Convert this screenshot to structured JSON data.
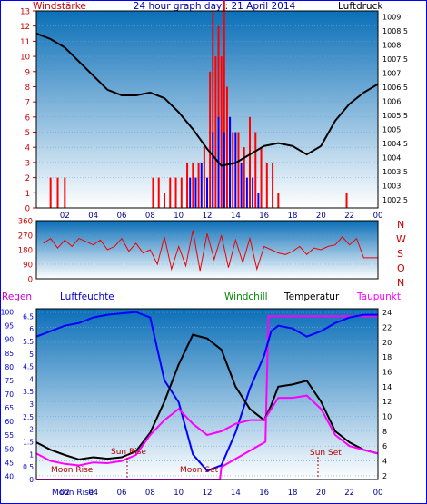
{
  "header": {
    "left": "Windstärke",
    "center": "24 hour graph day : 21 April 2014",
    "right": "Luftdruck"
  },
  "middle_labels": [
    "N",
    "W",
    "S",
    "O",
    "N"
  ],
  "bottom_header": {
    "regen": "Regen",
    "luftfeuchte": "Luftfeuchte",
    "windchill": "Windchill",
    "temperatur": "Temperatur",
    "taupunkt": "Taupunkt"
  },
  "annotations": {
    "sun_rise": "Sun Rise",
    "sun_set": "Sun Set",
    "moon_rise": "Moon Rise",
    "moon_set": "Moon Set",
    "moon_rise_bottom": "Moon Rise"
  },
  "colors": {
    "panel_top": "#0b6fb8",
    "panel_bottom": "#ffffff",
    "wind_red": "#ff0000",
    "wind_blue": "#0000ff",
    "pressure": "#000000",
    "humidity": "#0000ff",
    "temperature": "#000000",
    "dewpoint": "#ff00ff",
    "windchill": "#008800",
    "rain_axis": "#0000ff",
    "left_axis": "#cc0000",
    "annotation": "#aa0000"
  },
  "chart_data": [
    {
      "type": "line",
      "title": "24 hour graph day : 21 April 2014",
      "x_ticks": [
        "02",
        "04",
        "06",
        "08",
        "10",
        "12",
        "14",
        "16",
        "18",
        "20",
        "22",
        "00"
      ],
      "y_left_label": "Windstärke",
      "y_left_ticks": [
        0,
        1,
        2,
        3,
        4,
        5,
        6,
        7,
        8,
        9,
        10,
        11,
        12,
        13
      ],
      "y_left_range": [
        0,
        13
      ],
      "y_right_label": "Luftdruck",
      "y_right_ticks": [
        1002.5,
        1003,
        1003.5,
        1004,
        1004.5,
        1005,
        1005.5,
        1006,
        1006.5,
        1007,
        1007.5,
        1008,
        1008.5,
        1009
      ],
      "y_right_range": [
        1002.2,
        1009.2
      ],
      "x_range_hours": [
        0,
        24
      ],
      "pressure": {
        "x": [
          0,
          1,
          2,
          3,
          4,
          5,
          6,
          7,
          8,
          9,
          10,
          11,
          12,
          13,
          14,
          15,
          16,
          17,
          18,
          19,
          20,
          21,
          22,
          23,
          24
        ],
        "y": [
          1008.4,
          1008.2,
          1007.9,
          1007.4,
          1006.9,
          1006.4,
          1006.2,
          1006.2,
          1006.3,
          1006.1,
          1005.6,
          1005.0,
          1004.3,
          1003.7,
          1003.8,
          1004.1,
          1004.4,
          1004.5,
          1004.4,
          1004.1,
          1004.4,
          1005.3,
          1005.9,
          1006.3,
          1006.6
        ]
      },
      "wind_red_bars": {
        "x": [
          1.0,
          1.5,
          2.0,
          8.2,
          8.6,
          9.0,
          9.4,
          9.8,
          10.2,
          10.6,
          11.0,
          11.4,
          11.8,
          12.2,
          12.4,
          12.6,
          12.8,
          13.0,
          13.2,
          13.4,
          13.6,
          13.8,
          14.2,
          14.6,
          15.0,
          15.4,
          15.8,
          16.2,
          16.6,
          17.0,
          21.8
        ],
        "y": [
          2,
          2,
          2,
          2,
          2,
          1,
          2,
          2,
          2,
          3,
          3,
          3,
          4,
          9,
          13,
          10,
          12,
          10,
          14,
          8,
          6,
          5,
          5,
          4,
          6,
          5,
          4,
          3,
          3,
          1,
          1
        ]
      },
      "wind_blue_bars": {
        "x": [
          10.8,
          11.2,
          11.6,
          12.0,
          12.4,
          12.8,
          13.2,
          13.6,
          14.0,
          14.4,
          14.8,
          15.2,
          15.6
        ],
        "y": [
          2,
          2,
          3,
          2,
          5,
          6,
          5,
          6,
          5,
          3,
          2,
          2,
          1
        ]
      }
    },
    {
      "type": "line",
      "y_ticks": [
        0,
        90,
        180,
        270,
        360
      ],
      "y_range": [
        0,
        360
      ],
      "x_range_hours": [
        0,
        24
      ],
      "wind_direction": {
        "x": [
          0.5,
          1,
          1.5,
          2,
          2.5,
          3,
          3.5,
          4,
          4.5,
          5,
          5.5,
          6,
          6.5,
          7,
          7.5,
          8,
          8.5,
          9,
          9.5,
          10,
          10.5,
          11,
          11.5,
          12,
          12.5,
          13,
          13.5,
          14,
          14.5,
          15,
          15.5,
          16,
          16.5,
          17,
          17.5,
          18,
          18.5,
          19,
          19.5,
          20,
          20.5,
          21,
          21.5,
          22,
          22.5,
          23,
          23.5,
          24
        ],
        "y": [
          220,
          250,
          190,
          240,
          200,
          250,
          230,
          210,
          240,
          180,
          200,
          250,
          170,
          220,
          160,
          180,
          90,
          260,
          60,
          200,
          80,
          300,
          50,
          280,
          120,
          270,
          70,
          240,
          100,
          250,
          60,
          200,
          180,
          160,
          150,
          170,
          200,
          150,
          190,
          180,
          200,
          210,
          260,
          210,
          250,
          130,
          130,
          130
        ]
      }
    },
    {
      "type": "line",
      "x_ticks": [
        "02",
        "04",
        "06",
        "08",
        "10",
        "12",
        "14",
        "16",
        "18",
        "20",
        "22",
        "00"
      ],
      "x_range_hours": [
        0,
        24
      ],
      "y_left_rain_label": "Regen",
      "y_left_rain_ticks": [
        0,
        0.5,
        1,
        1.5,
        2,
        2.5,
        3,
        3.5,
        4,
        4.5,
        5,
        5.5,
        6,
        6.5
      ],
      "y_left_rain_range": [
        0,
        6.8
      ],
      "y_left_humidity_label": "Luftfeuchte",
      "y_left_humidity_ticks": [
        40,
        45,
        50,
        55,
        60,
        65,
        70,
        75,
        80,
        85,
        90,
        95,
        100
      ],
      "y_left_humidity_range": [
        38.8,
        101.2
      ],
      "y_right_label": "Temperatur",
      "y_right_ticks": [
        2,
        4,
        6,
        8,
        10,
        12,
        14,
        16,
        18,
        20,
        22,
        24
      ],
      "y_right_range": [
        1.5,
        24.5
      ],
      "series": [
        {
          "name": "Luftfeuchte",
          "x": [
            0,
            1,
            2,
            3,
            4,
            5,
            6,
            7,
            8,
            9,
            10,
            11,
            12,
            13,
            14,
            15,
            16,
            16.5,
            17,
            18,
            19,
            20,
            21,
            22,
            23,
            24
          ],
          "y": [
            91,
            93,
            95,
            96,
            98,
            99,
            99.5,
            100,
            98,
            75,
            67,
            48,
            42,
            44,
            56,
            72,
            84,
            93,
            95,
            94,
            91,
            93,
            96,
            98,
            99,
            99
          ]
        },
        {
          "name": "Temperatur",
          "x": [
            0,
            1,
            2,
            3,
            4,
            5,
            6,
            7,
            8,
            9,
            10,
            11,
            12,
            13,
            14,
            15,
            16,
            16.5,
            17,
            18,
            19,
            20,
            21,
            22,
            23,
            24
          ],
          "y": [
            6.5,
            5.5,
            4.8,
            4.2,
            4.5,
            4.3,
            4.5,
            5.3,
            7.8,
            12,
            17,
            21,
            20.5,
            19,
            14,
            11,
            9.5,
            11.5,
            14,
            14.3,
            14.8,
            12,
            8,
            6.5,
            5.5,
            5
          ]
        },
        {
          "name": "Taupunkt",
          "x": [
            0,
            1,
            2,
            3,
            4,
            5,
            6,
            7,
            8,
            9,
            10,
            11,
            12,
            13,
            14,
            15,
            16,
            16.5,
            17,
            18,
            19,
            20,
            21,
            22,
            23,
            24
          ],
          "y": [
            5,
            4,
            3.6,
            3.4,
            3.8,
            3.7,
            4.0,
            4.8,
            7.5,
            9.5,
            11,
            9,
            7.5,
            8,
            9,
            9.5,
            9.5,
            11,
            12.5,
            12.5,
            12.8,
            11,
            7.5,
            6,
            5.5,
            5
          ]
        },
        {
          "name": "Regen",
          "x": [
            0,
            12.9,
            13.0,
            16.1,
            16.3,
            24
          ],
          "y": [
            0,
            0,
            0.5,
            1.5,
            6.5,
            6.5
          ]
        }
      ]
    }
  ]
}
